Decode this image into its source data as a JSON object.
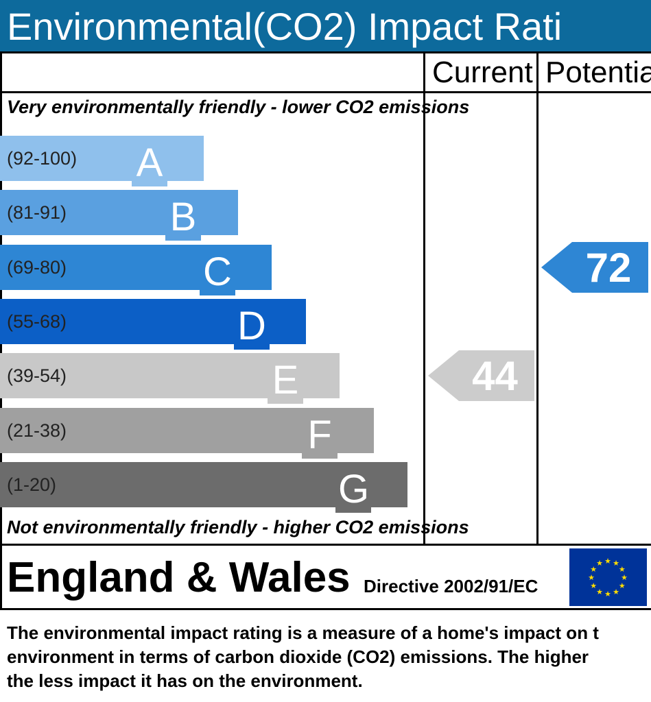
{
  "header": {
    "title": "Environmental(CO2) Impact Rati"
  },
  "columns": {
    "current": "Current",
    "potential": "Potentia"
  },
  "band_top_text": "Very environmentally friendly - lower CO2 emissions",
  "band_bottom_text": "Not environmentally friendly - higher CO2 emissions",
  "chart_data": {
    "type": "bar",
    "title": "Environmental(CO2) Impact Rati",
    "bands": [
      {
        "letter": "A",
        "range": "(92-100)",
        "color": "#8fc0ec"
      },
      {
        "letter": "B",
        "range": "(81-91)",
        "color": "#5aa0e0"
      },
      {
        "letter": "C",
        "range": "(69-80)",
        "color": "#2e86d4"
      },
      {
        "letter": "D",
        "range": "(55-68)",
        "color": "#0c5fc6"
      },
      {
        "letter": "E",
        "range": "(39-54)",
        "color": "#c8c8c8"
      },
      {
        "letter": "F",
        "range": "(21-38)",
        "color": "#a0a0a0"
      },
      {
        "letter": "G",
        "range": "(1-20)",
        "color": "#6c6c6c"
      }
    ],
    "current": {
      "value": 44,
      "band": "E",
      "color": "#cccccc"
    },
    "potential": {
      "value": 72,
      "band": "C",
      "color": "#2e86d4"
    }
  },
  "footer": {
    "region": "England & Wales",
    "directive": "Directive 2002/91/EC",
    "flag_color": "#003399",
    "star_color": "#ffdd00"
  },
  "description": [
    "The environmental impact rating is a measure of a home's impact on t",
    "environment in terms of carbon dioxide (CO2) emissions. The higher",
    "the less impact it has on the environment."
  ]
}
